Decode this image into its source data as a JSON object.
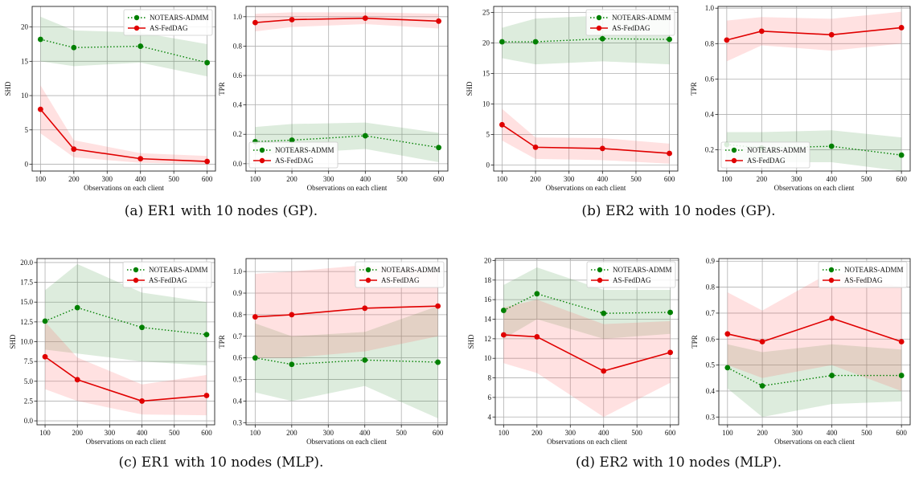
{
  "captions": [
    "(a) ER1 with 10 nodes (GP).",
    "(b) ER2 with 10 nodes (GP).",
    "(c) ER1 with 10 nodes (MLP).",
    "(d) ER2 with 10 nodes (MLP)."
  ],
  "colors": {
    "noTears": "#008000",
    "asFed": "#e00000",
    "noTearsBand": "#2e8b2e",
    "asFedBand": "#ff5a5a"
  },
  "chart_data": [
    {
      "type": "line",
      "panel": "a-SHD",
      "x": [
        100,
        200,
        400,
        600
      ],
      "xlabel": "Observations on each client",
      "ylabel": "SHD",
      "xticks": [
        100,
        200,
        300,
        400,
        500,
        600
      ],
      "ylim": [
        -1,
        23
      ],
      "yticks": [
        0,
        5,
        10,
        15,
        20
      ],
      "ytick_labels": [
        "0",
        "5",
        "10",
        "15",
        "20"
      ],
      "grid": true,
      "legend": "top-right",
      "series": [
        {
          "name": "NOTEARS-ADMM",
          "values": [
            18.2,
            17.0,
            17.2,
            14.8
          ],
          "lower": [
            15.0,
            14.3,
            14.8,
            12.8
          ],
          "upper": [
            21.5,
            19.5,
            19.2,
            17.5
          ]
        },
        {
          "name": "AS-FedDAG",
          "values": [
            8.0,
            2.2,
            0.8,
            0.4
          ],
          "lower": [
            4.5,
            1.0,
            0.2,
            0.0
          ],
          "upper": [
            11.5,
            3.5,
            1.6,
            1.2
          ]
        }
      ]
    },
    {
      "type": "line",
      "panel": "a-TPR",
      "x": [
        100,
        200,
        400,
        600
      ],
      "xlabel": "Observations on each client",
      "ylabel": "TPR",
      "xticks": [
        100,
        200,
        300,
        400,
        500,
        600
      ],
      "ylim": [
        -0.05,
        1.07
      ],
      "yticks": [
        0.0,
        0.2,
        0.4,
        0.6,
        0.8,
        1.0
      ],
      "ytick_labels": [
        "0.0",
        "0.2",
        "0.4",
        "0.6",
        "0.8",
        "1.0"
      ],
      "grid": true,
      "legend": "lower-left",
      "series": [
        {
          "name": "NOTEARS-ADMM",
          "values": [
            0.15,
            0.16,
            0.19,
            0.11
          ],
          "lower": [
            0.06,
            0.07,
            0.1,
            0.01
          ],
          "upper": [
            0.25,
            0.27,
            0.28,
            0.21
          ]
        },
        {
          "name": "AS-FedDAG",
          "values": [
            0.96,
            0.98,
            0.99,
            0.97
          ],
          "lower": [
            0.9,
            0.93,
            0.95,
            0.92
          ],
          "upper": [
            1.02,
            1.03,
            1.03,
            1.02
          ]
        }
      ]
    },
    {
      "type": "line",
      "panel": "b-SHD",
      "x": [
        100,
        200,
        400,
        600
      ],
      "xlabel": "Observations on each client",
      "ylabel": "SHD",
      "xticks": [
        100,
        200,
        300,
        400,
        500,
        600
      ],
      "ylim": [
        -1,
        26
      ],
      "yticks": [
        0,
        5,
        10,
        15,
        20,
        25
      ],
      "ytick_labels": [
        "0",
        "5",
        "10",
        "15",
        "20",
        "25"
      ],
      "grid": true,
      "legend": "top-right",
      "series": [
        {
          "name": "NOTEARS-ADMM",
          "values": [
            20.2,
            20.2,
            20.7,
            20.6
          ],
          "lower": [
            17.5,
            16.5,
            17.0,
            16.5
          ],
          "upper": [
            22.5,
            24.0,
            24.5,
            24.0
          ]
        },
        {
          "name": "AS-FedDAG",
          "values": [
            6.6,
            2.9,
            2.7,
            1.9
          ],
          "lower": [
            4.0,
            1.0,
            0.8,
            0.2
          ],
          "upper": [
            9.2,
            4.5,
            4.4,
            3.5
          ]
        }
      ]
    },
    {
      "type": "line",
      "panel": "b-TPR",
      "x": [
        100,
        200,
        400,
        600
      ],
      "xlabel": "Observations on each client",
      "ylabel": "TPR",
      "xticks": [
        100,
        200,
        300,
        400,
        500,
        600
      ],
      "ylim": [
        0.08,
        1.01
      ],
      "yticks": [
        0.2,
        0.4,
        0.6,
        0.8,
        1.0
      ],
      "ytick_labels": [
        "0.2",
        "0.4",
        "0.6",
        "0.8",
        "1.0"
      ],
      "grid": true,
      "legend": "lower-left",
      "series": [
        {
          "name": "NOTEARS-ADMM",
          "values": [
            0.23,
            0.21,
            0.22,
            0.17
          ],
          "lower": [
            0.15,
            0.13,
            0.13,
            0.08
          ],
          "upper": [
            0.3,
            0.3,
            0.31,
            0.27
          ]
        },
        {
          "name": "AS-FedDAG",
          "values": [
            0.82,
            0.87,
            0.85,
            0.89
          ],
          "lower": [
            0.7,
            0.79,
            0.76,
            0.8
          ],
          "upper": [
            0.93,
            0.95,
            0.94,
            0.98
          ]
        }
      ]
    },
    {
      "type": "line",
      "panel": "c-SHD",
      "x": [
        100,
        200,
        400,
        600
      ],
      "xlabel": "Observations on each client",
      "ylabel": "SHD",
      "xticks": [
        100,
        200,
        300,
        400,
        500,
        600
      ],
      "ylim": [
        -0.5,
        20.5
      ],
      "yticks": [
        0,
        2.5,
        5,
        7.5,
        10,
        12.5,
        15,
        17.5,
        20
      ],
      "ytick_labels": [
        "0.0",
        "2.5",
        "5.0",
        "7.5",
        "10.0",
        "12.5",
        "15.0",
        "17.5",
        "20.0"
      ],
      "grid": true,
      "legend": "top-right",
      "series": [
        {
          "name": "NOTEARS-ADMM",
          "values": [
            12.6,
            14.3,
            11.8,
            10.9
          ],
          "lower": [
            9.0,
            8.5,
            7.5,
            7.0
          ],
          "upper": [
            16.5,
            19.8,
            16.2,
            15.0
          ]
        },
        {
          "name": "AS-FedDAG",
          "values": [
            8.1,
            5.2,
            2.5,
            3.2
          ],
          "lower": [
            4.0,
            2.5,
            0.8,
            0.7
          ],
          "upper": [
            12.5,
            8.0,
            4.6,
            5.8
          ]
        }
      ]
    },
    {
      "type": "line",
      "panel": "c-TPR",
      "x": [
        100,
        200,
        400,
        600
      ],
      "xlabel": "Observations on each client",
      "ylabel": "TPR",
      "xticks": [
        100,
        200,
        300,
        400,
        500,
        600
      ],
      "ylim": [
        0.29,
        1.06
      ],
      "yticks": [
        0.3,
        0.4,
        0.5,
        0.6,
        0.7,
        0.8,
        0.9,
        1.0
      ],
      "ytick_labels": [
        "0.3",
        "0.4",
        "0.5",
        "0.6",
        "0.7",
        "0.8",
        "0.9",
        "1.0"
      ],
      "grid": true,
      "legend": "top-right",
      "series": [
        {
          "name": "NOTEARS-ADMM",
          "values": [
            0.6,
            0.57,
            0.59,
            0.58
          ],
          "lower": [
            0.44,
            0.4,
            0.47,
            0.32
          ],
          "upper": [
            0.76,
            0.7,
            0.72,
            0.84
          ]
        },
        {
          "name": "AS-FedDAG",
          "values": [
            0.79,
            0.8,
            0.83,
            0.84
          ],
          "lower": [
            0.6,
            0.6,
            0.63,
            0.7
          ],
          "upper": [
            0.99,
            1.0,
            1.03,
            1.0
          ]
        }
      ]
    },
    {
      "type": "line",
      "panel": "d-SHD",
      "x": [
        100,
        200,
        400,
        600
      ],
      "xlabel": "Observations on each client",
      "ylabel": "SHD",
      "xticks": [
        100,
        200,
        300,
        400,
        500,
        600
      ],
      "ylim": [
        3.2,
        20.2
      ],
      "yticks": [
        4,
        6,
        8,
        10,
        12,
        14,
        16,
        18,
        20
      ],
      "ytick_labels": [
        "4",
        "6",
        "8",
        "10",
        "12",
        "14",
        "16",
        "18",
        "20"
      ],
      "grid": true,
      "legend": "top-right",
      "series": [
        {
          "name": "NOTEARS-ADMM",
          "values": [
            14.9,
            16.6,
            14.6,
            14.7
          ],
          "lower": [
            12.0,
            14.0,
            12.0,
            12.5
          ],
          "upper": [
            17.5,
            19.3,
            17.0,
            17.0
          ]
        },
        {
          "name": "AS-FedDAG",
          "values": [
            12.4,
            12.2,
            8.7,
            10.6
          ],
          "lower": [
            9.5,
            8.5,
            4.0,
            7.5
          ],
          "upper": [
            15.2,
            16.0,
            13.5,
            13.8
          ]
        }
      ]
    },
    {
      "type": "line",
      "panel": "d-TPR",
      "x": [
        100,
        200,
        400,
        600
      ],
      "xlabel": "Observations on each client",
      "ylabel": "TPR",
      "xticks": [
        100,
        200,
        300,
        400,
        500,
        600
      ],
      "ylim": [
        0.27,
        0.91
      ],
      "yticks": [
        0.3,
        0.4,
        0.5,
        0.6,
        0.7,
        0.8,
        0.9
      ],
      "ytick_labels": [
        "0.3",
        "0.4",
        "0.5",
        "0.6",
        "0.7",
        "0.8",
        "0.9"
      ],
      "grid": true,
      "legend": "top-right",
      "series": [
        {
          "name": "NOTEARS-ADMM",
          "values": [
            0.49,
            0.42,
            0.46,
            0.46
          ],
          "lower": [
            0.41,
            0.3,
            0.35,
            0.36
          ],
          "upper": [
            0.58,
            0.55,
            0.58,
            0.56
          ]
        },
        {
          "name": "AS-FedDAG",
          "values": [
            0.62,
            0.59,
            0.68,
            0.59
          ],
          "lower": [
            0.5,
            0.45,
            0.5,
            0.4
          ],
          "upper": [
            0.78,
            0.71,
            0.86,
            0.8
          ]
        }
      ]
    }
  ]
}
